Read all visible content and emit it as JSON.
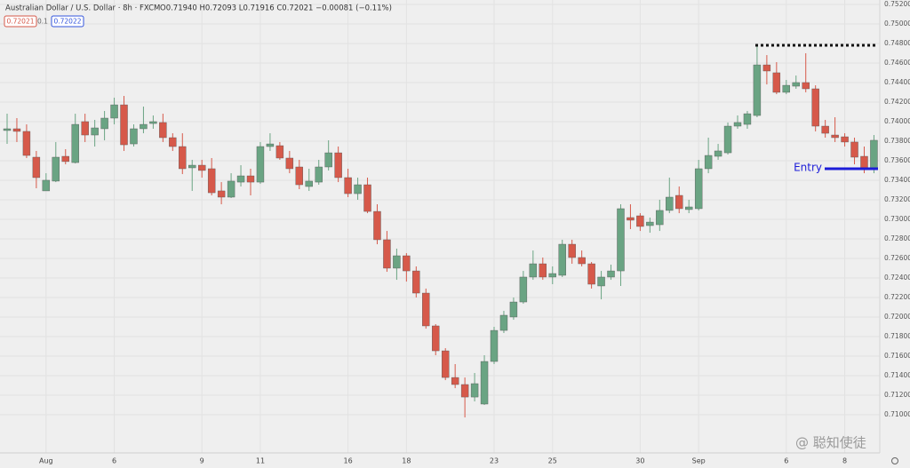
{
  "chart_data": {
    "type": "candlestick",
    "title": "Australian Dollar / U.S. Dollar · 8h · FXCM",
    "subtitle": "O0.71940 H0.72093 L0.71916 C0.72021 −0.00081 (−0.11%)",
    "badges": [
      "0.72021",
      "0.1",
      "0.72022"
    ],
    "watermark": "@ 聪知使徒",
    "up_color": "#6aa483",
    "down_color": "#d6594a",
    "grid": true,
    "categories": [
      null,
      null,
      null,
      null,
      "Aug",
      null,
      null,
      null,
      null,
      null,
      null,
      "6",
      null,
      null,
      null,
      null,
      null,
      null,
      null,
      null,
      "9",
      null,
      null,
      null,
      null,
      null,
      "11",
      null,
      null,
      null,
      null,
      null,
      null,
      null,
      null,
      "16",
      null,
      null,
      null,
      null,
      null,
      "18",
      null,
      null,
      null,
      null,
      null,
      null,
      null,
      null,
      "23",
      null,
      null,
      null,
      null,
      null,
      "25",
      null,
      null,
      null,
      null,
      null,
      null,
      null,
      null,
      "30",
      null,
      null,
      null,
      null,
      null,
      "Sep",
      null,
      null,
      null,
      null,
      null,
      null,
      null,
      null,
      "6",
      null,
      null,
      null,
      null,
      null,
      "8",
      null,
      null,
      null
    ],
    "open": [
      0.73909,
      0.73927,
      0.739,
      0.73636,
      0.73291,
      0.73391,
      0.73645,
      0.73581,
      0.74,
      0.73863,
      0.73927,
      0.74036,
      0.74172,
      0.73772,
      0.73927,
      0.73981,
      0.73991,
      0.73836,
      0.73745,
      0.73527,
      0.73554,
      0.73518,
      0.73291,
      0.73227,
      0.73381,
      0.73445,
      0.73381,
      0.73745,
      0.73754,
      0.73627,
      0.73536,
      0.73336,
      0.73381,
      0.73536,
      0.73681,
      0.73427,
      0.73263,
      0.73354,
      0.73081,
      0.72791,
      0.725,
      0.72627,
      0.72472,
      0.72245,
      0.71909,
      0.71654,
      0.71381,
      0.71309,
      0.71181,
      0.71109,
      0.71545,
      0.71863,
      0.72,
      0.72154,
      0.72409,
      0.72545,
      0.72409,
      0.72427,
      0.72745,
      0.72609,
      0.72545,
      0.72318,
      0.72409,
      0.72472,
      0.73018,
      0.73036,
      0.72936,
      0.72945,
      0.73091,
      0.73245,
      0.731,
      0.73109,
      0.73518,
      0.73645,
      0.73681,
      0.73954,
      0.73972,
      0.74063,
      0.74581,
      0.745,
      0.743,
      0.74363,
      0.744,
      0.74336,
      0.73954,
      0.73863,
      0.73845,
      0.73791,
      0.73645,
      0.73518
    ],
    "high": [
      0.74081,
      0.74036,
      0.73972,
      0.737,
      0.73472,
      0.73791,
      0.73718,
      0.74081,
      0.74081,
      0.74018,
      0.74109,
      0.74245,
      0.74263,
      0.73972,
      0.74154,
      0.74063,
      0.74081,
      0.73881,
      0.73881,
      0.73609,
      0.73609,
      0.73627,
      0.73381,
      0.73472,
      0.73554,
      0.73518,
      0.73791,
      0.73881,
      0.73791,
      0.737,
      0.73609,
      0.73518,
      0.73609,
      0.73809,
      0.73745,
      0.73518,
      0.73427,
      0.73427,
      0.73154,
      0.72881,
      0.727,
      0.72654,
      0.72518,
      0.72291,
      0.71927,
      0.71681,
      0.71518,
      0.71381,
      0.71427,
      0.71609,
      0.719,
      0.72063,
      0.722,
      0.72472,
      0.72681,
      0.72609,
      0.72518,
      0.72791,
      0.72791,
      0.72681,
      0.72563,
      0.72472,
      0.72536,
      0.73154,
      0.73154,
      0.73063,
      0.73018,
      0.732,
      0.73427,
      0.73336,
      0.732,
      0.73609,
      0.73836,
      0.73772,
      0.73991,
      0.74063,
      0.74109,
      0.74772,
      0.74681,
      0.74609,
      0.74427,
      0.74472,
      0.747,
      0.74372,
      0.74018,
      0.74045,
      0.73881,
      0.73836,
      0.73745,
      0.73863
    ],
    "low": [
      0.73772,
      0.73791,
      0.73627,
      0.73318,
      0.73291,
      0.73381,
      0.73563,
      0.73572,
      0.73791,
      0.73745,
      0.73809,
      0.73972,
      0.737,
      0.73745,
      0.73881,
      0.73927,
      0.73791,
      0.737,
      0.73463,
      0.73291,
      0.73427,
      0.73245,
      0.73154,
      0.73218,
      0.73336,
      0.73245,
      0.73363,
      0.737,
      0.73609,
      0.73472,
      0.73309,
      0.73291,
      0.73354,
      0.735,
      0.73381,
      0.73227,
      0.732,
      0.73063,
      0.72745,
      0.72463,
      0.72381,
      0.72363,
      0.722,
      0.71881,
      0.71609,
      0.71354,
      0.71272,
      0.70972,
      0.71136,
      0.711,
      0.71518,
      0.71836,
      0.71972,
      0.72136,
      0.72381,
      0.72381,
      0.72336,
      0.72409,
      0.72545,
      0.72518,
      0.72291,
      0.72181,
      0.72381,
      0.72318,
      0.729,
      0.72881,
      0.72863,
      0.72881,
      0.73063,
      0.73063,
      0.73063,
      0.73091,
      0.73472,
      0.73609,
      0.73663,
      0.73927,
      0.73927,
      0.74045,
      0.74381,
      0.74281,
      0.74281,
      0.74336,
      0.743,
      0.739,
      0.73836,
      0.73791,
      0.73745,
      0.73563,
      0.73472,
      0.73472
    ],
    "close": [
      0.73927,
      0.739,
      0.73654,
      0.73427,
      0.734,
      0.73636,
      0.73591,
      0.73972,
      0.73863,
      0.73936,
      0.74036,
      0.74172,
      0.73763,
      0.73927,
      0.73972,
      0.74,
      0.73836,
      0.73745,
      0.73518,
      0.73554,
      0.735,
      0.73272,
      0.73227,
      0.73391,
      0.73445,
      0.73381,
      0.73745,
      0.73772,
      0.73627,
      0.73518,
      0.73354,
      0.73391,
      0.73536,
      0.73681,
      0.73427,
      0.73263,
      0.73354,
      0.73081,
      0.72791,
      0.725,
      0.72627,
      0.72472,
      0.72245,
      0.71909,
      0.71654,
      0.71381,
      0.71309,
      0.71181,
      0.71318,
      0.71545,
      0.71863,
      0.72018,
      0.72154,
      0.72409,
      0.72545,
      0.72409,
      0.72445,
      0.72745,
      0.72609,
      0.72545,
      0.72336,
      0.72409,
      0.72472,
      0.73109,
      0.72991,
      0.72927,
      0.72972,
      0.73091,
      0.73227,
      0.73109,
      0.73127,
      0.73518,
      0.73654,
      0.737,
      0.73954,
      0.73991,
      0.74081,
      0.74581,
      0.74518,
      0.743,
      0.74372,
      0.744,
      0.74336,
      0.73954,
      0.73881,
      0.73836,
      0.73791,
      0.73636,
      0.73518,
      0.73809
    ],
    "ylim": [
      0.70609,
      0.75245
    ],
    "yticks": [
      {
        "value": 0.752,
        "label": "0.75200"
      },
      {
        "value": 0.75,
        "label": "0.75000"
      },
      {
        "value": 0.748,
        "label": "0.74800"
      },
      {
        "value": 0.746,
        "label": "0.74600"
      },
      {
        "value": 0.744,
        "label": "0.74400"
      },
      {
        "value": 0.742,
        "label": "0.74200"
      },
      {
        "value": 0.74,
        "label": "0.74000"
      },
      {
        "value": 0.738,
        "label": "0.73800"
      },
      {
        "value": 0.736,
        "label": "0.73600"
      },
      {
        "value": 0.734,
        "label": "0.73400"
      },
      {
        "value": 0.732,
        "label": "0.73200"
      },
      {
        "value": 0.73,
        "label": "0.73000"
      },
      {
        "value": 0.728,
        "label": "0.72800"
      },
      {
        "value": 0.726,
        "label": "0.72600"
      },
      {
        "value": 0.724,
        "label": "0.72400"
      },
      {
        "value": 0.722,
        "label": "0.72200"
      },
      {
        "value": 0.72,
        "label": "0.72000"
      },
      {
        "value": 0.718,
        "label": "0.71800"
      },
      {
        "value": 0.716,
        "label": "0.71600"
      },
      {
        "value": 0.714,
        "label": "0.71400"
      },
      {
        "value": 0.712,
        "label": "0.71200"
      },
      {
        "value": 0.71,
        "label": "0.71000"
      }
    ],
    "hlines": [
      {
        "value": 0.74781,
        "style": "dotted",
        "color": "#111111"
      }
    ],
    "annotations": [
      {
        "text": "Entry",
        "value": 0.73518,
        "color": "#1c1cd8"
      }
    ]
  }
}
